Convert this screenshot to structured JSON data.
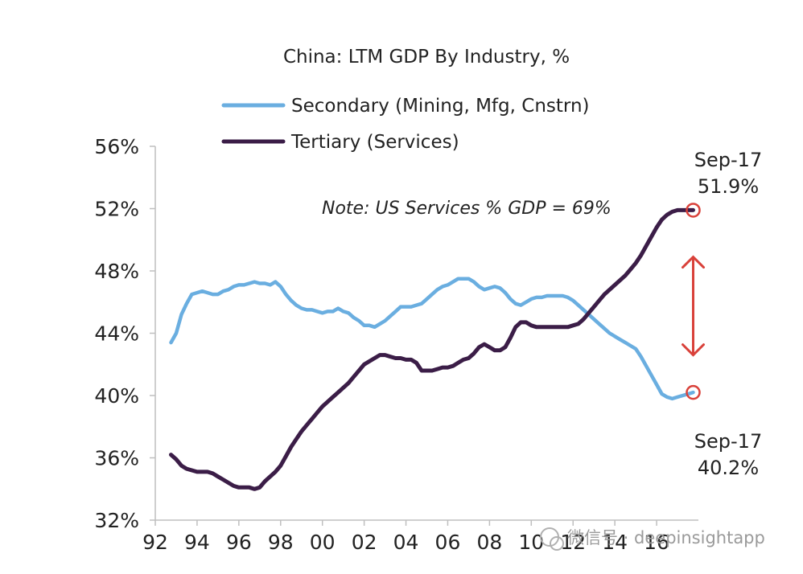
{
  "chart_data": {
    "type": "line",
    "title": "China: LTM GDP By Industry, %",
    "xlabel": "",
    "ylabel": "",
    "xlim": [
      1992,
      2018
    ],
    "ylim": [
      32,
      56
    ],
    "y_ticks": [
      32,
      36,
      40,
      44,
      48,
      52,
      56
    ],
    "y_tick_labels": [
      "32%",
      "36%",
      "40%",
      "44%",
      "48%",
      "52%",
      "56%"
    ],
    "x_ticks": [
      1992,
      1994,
      1996,
      1998,
      2000,
      2002,
      2004,
      2006,
      2008,
      2010,
      2012,
      2014,
      2016
    ],
    "x_tick_labels": [
      "92",
      "94",
      "96",
      "98",
      "00",
      "02",
      "04",
      "06",
      "08",
      "10",
      "12",
      "14",
      "16"
    ],
    "grid": false,
    "legend_position": "top-left",
    "series": [
      {
        "name": "Secondary (Mining, Mfg, Cnstrn)",
        "color": "#6aaee0",
        "x": [
          1992.75,
          1993.0,
          1993.25,
          1993.5,
          1993.75,
          1994.0,
          1994.25,
          1994.5,
          1994.75,
          1995.0,
          1995.25,
          1995.5,
          1995.75,
          1996.0,
          1996.25,
          1996.5,
          1996.75,
          1997.0,
          1997.25,
          1997.5,
          1997.75,
          1998.0,
          1998.25,
          1998.5,
          1998.75,
          1999.0,
          1999.25,
          1999.5,
          1999.75,
          2000.0,
          2000.25,
          2000.5,
          2000.75,
          2001.0,
          2001.25,
          2001.5,
          2001.75,
          2002.0,
          2002.25,
          2002.5,
          2002.75,
          2003.0,
          2003.25,
          2003.5,
          2003.75,
          2004.0,
          2004.25,
          2004.5,
          2004.75,
          2005.0,
          2005.25,
          2005.5,
          2005.75,
          2006.0,
          2006.25,
          2006.5,
          2006.75,
          2007.0,
          2007.25,
          2007.5,
          2007.75,
          2008.0,
          2008.25,
          2008.5,
          2008.75,
          2009.0,
          2009.25,
          2009.5,
          2009.75,
          2010.0,
          2010.25,
          2010.5,
          2010.75,
          2011.0,
          2011.25,
          2011.5,
          2011.75,
          2012.0,
          2012.25,
          2012.5,
          2012.75,
          2013.0,
          2013.25,
          2013.5,
          2013.75,
          2014.0,
          2014.25,
          2014.5,
          2014.75,
          2015.0,
          2015.25,
          2015.5,
          2015.75,
          2016.0,
          2016.25,
          2016.5,
          2016.75,
          2017.0,
          2017.25,
          2017.5,
          2017.75
        ],
        "values": [
          43.4,
          44.0,
          45.2,
          45.9,
          46.5,
          46.6,
          46.7,
          46.6,
          46.5,
          46.5,
          46.7,
          46.8,
          47.0,
          47.1,
          47.1,
          47.2,
          47.3,
          47.2,
          47.2,
          47.1,
          47.3,
          47.0,
          46.5,
          46.1,
          45.8,
          45.6,
          45.5,
          45.5,
          45.4,
          45.3,
          45.4,
          45.4,
          45.6,
          45.4,
          45.3,
          45.0,
          44.8,
          44.5,
          44.5,
          44.4,
          44.6,
          44.8,
          45.1,
          45.4,
          45.7,
          45.7,
          45.7,
          45.8,
          45.9,
          46.2,
          46.5,
          46.8,
          47.0,
          47.1,
          47.3,
          47.5,
          47.5,
          47.5,
          47.3,
          47.0,
          46.8,
          46.9,
          47.0,
          46.9,
          46.6,
          46.2,
          45.9,
          45.8,
          46.0,
          46.2,
          46.3,
          46.3,
          46.4,
          46.4,
          46.4,
          46.4,
          46.3,
          46.1,
          45.8,
          45.5,
          45.2,
          44.9,
          44.6,
          44.3,
          44.0,
          43.8,
          43.6,
          43.4,
          43.2,
          43.0,
          42.5,
          41.9,
          41.3,
          40.7,
          40.1,
          39.9,
          39.8,
          39.9,
          40.0,
          40.1,
          40.2
        ]
      },
      {
        "name": "Tertiary (Services)",
        "color": "#3b1d47",
        "x": [
          1992.75,
          1993.0,
          1993.25,
          1993.5,
          1993.75,
          1994.0,
          1994.25,
          1994.5,
          1994.75,
          1995.0,
          1995.25,
          1995.5,
          1995.75,
          1996.0,
          1996.25,
          1996.5,
          1996.75,
          1997.0,
          1997.25,
          1997.5,
          1997.75,
          1998.0,
          1998.25,
          1998.5,
          1998.75,
          1999.0,
          1999.25,
          1999.5,
          1999.75,
          2000.0,
          2000.25,
          2000.5,
          2000.75,
          2001.0,
          2001.25,
          2001.5,
          2001.75,
          2002.0,
          2002.25,
          2002.5,
          2002.75,
          2003.0,
          2003.25,
          2003.5,
          2003.75,
          2004.0,
          2004.25,
          2004.5,
          2004.75,
          2005.0,
          2005.25,
          2005.5,
          2005.75,
          2006.0,
          2006.25,
          2006.5,
          2006.75,
          2007.0,
          2007.25,
          2007.5,
          2007.75,
          2008.0,
          2008.25,
          2008.5,
          2008.75,
          2009.0,
          2009.25,
          2009.5,
          2009.75,
          2010.0,
          2010.25,
          2010.5,
          2010.75,
          2011.0,
          2011.25,
          2011.5,
          2011.75,
          2012.0,
          2012.25,
          2012.5,
          2012.75,
          2013.0,
          2013.25,
          2013.5,
          2013.75,
          2014.0,
          2014.25,
          2014.5,
          2014.75,
          2015.0,
          2015.25,
          2015.5,
          2015.75,
          2016.0,
          2016.25,
          2016.5,
          2016.75,
          2017.0,
          2017.25,
          2017.5,
          2017.75
        ],
        "values": [
          36.2,
          35.9,
          35.5,
          35.3,
          35.2,
          35.1,
          35.1,
          35.1,
          35.0,
          34.8,
          34.6,
          34.4,
          34.2,
          34.1,
          34.1,
          34.1,
          34.0,
          34.1,
          34.5,
          34.8,
          35.1,
          35.5,
          36.1,
          36.7,
          37.2,
          37.7,
          38.1,
          38.5,
          38.9,
          39.3,
          39.6,
          39.9,
          40.2,
          40.5,
          40.8,
          41.2,
          41.6,
          42.0,
          42.2,
          42.4,
          42.6,
          42.6,
          42.5,
          42.4,
          42.4,
          42.3,
          42.3,
          42.1,
          41.6,
          41.6,
          41.6,
          41.7,
          41.8,
          41.8,
          41.9,
          42.1,
          42.3,
          42.4,
          42.7,
          43.1,
          43.3,
          43.1,
          42.9,
          42.9,
          43.1,
          43.7,
          44.4,
          44.7,
          44.7,
          44.5,
          44.4,
          44.4,
          44.4,
          44.4,
          44.4,
          44.4,
          44.4,
          44.5,
          44.6,
          44.9,
          45.3,
          45.7,
          46.1,
          46.5,
          46.8,
          47.1,
          47.4,
          47.7,
          48.1,
          48.5,
          49.0,
          49.6,
          50.2,
          50.8,
          51.3,
          51.6,
          51.8,
          51.9,
          51.9,
          51.9,
          51.9
        ]
      }
    ],
    "annotations": {
      "note": "Note: US Services % GDP = 69%",
      "top_label_date": "Sep-17",
      "top_label_value": "51.9%",
      "top_marker_value": 51.9,
      "bottom_label_date": "Sep-17",
      "bottom_label_value": "40.2%",
      "bottom_marker_value": 40.2,
      "marker_x": 2017.75,
      "arrow_color": "#d9413a",
      "arrow_from": 48.9,
      "arrow_to": 42.6,
      "arrow_x": 2017.75
    },
    "watermark": "微信号 · deepinsightapp"
  }
}
